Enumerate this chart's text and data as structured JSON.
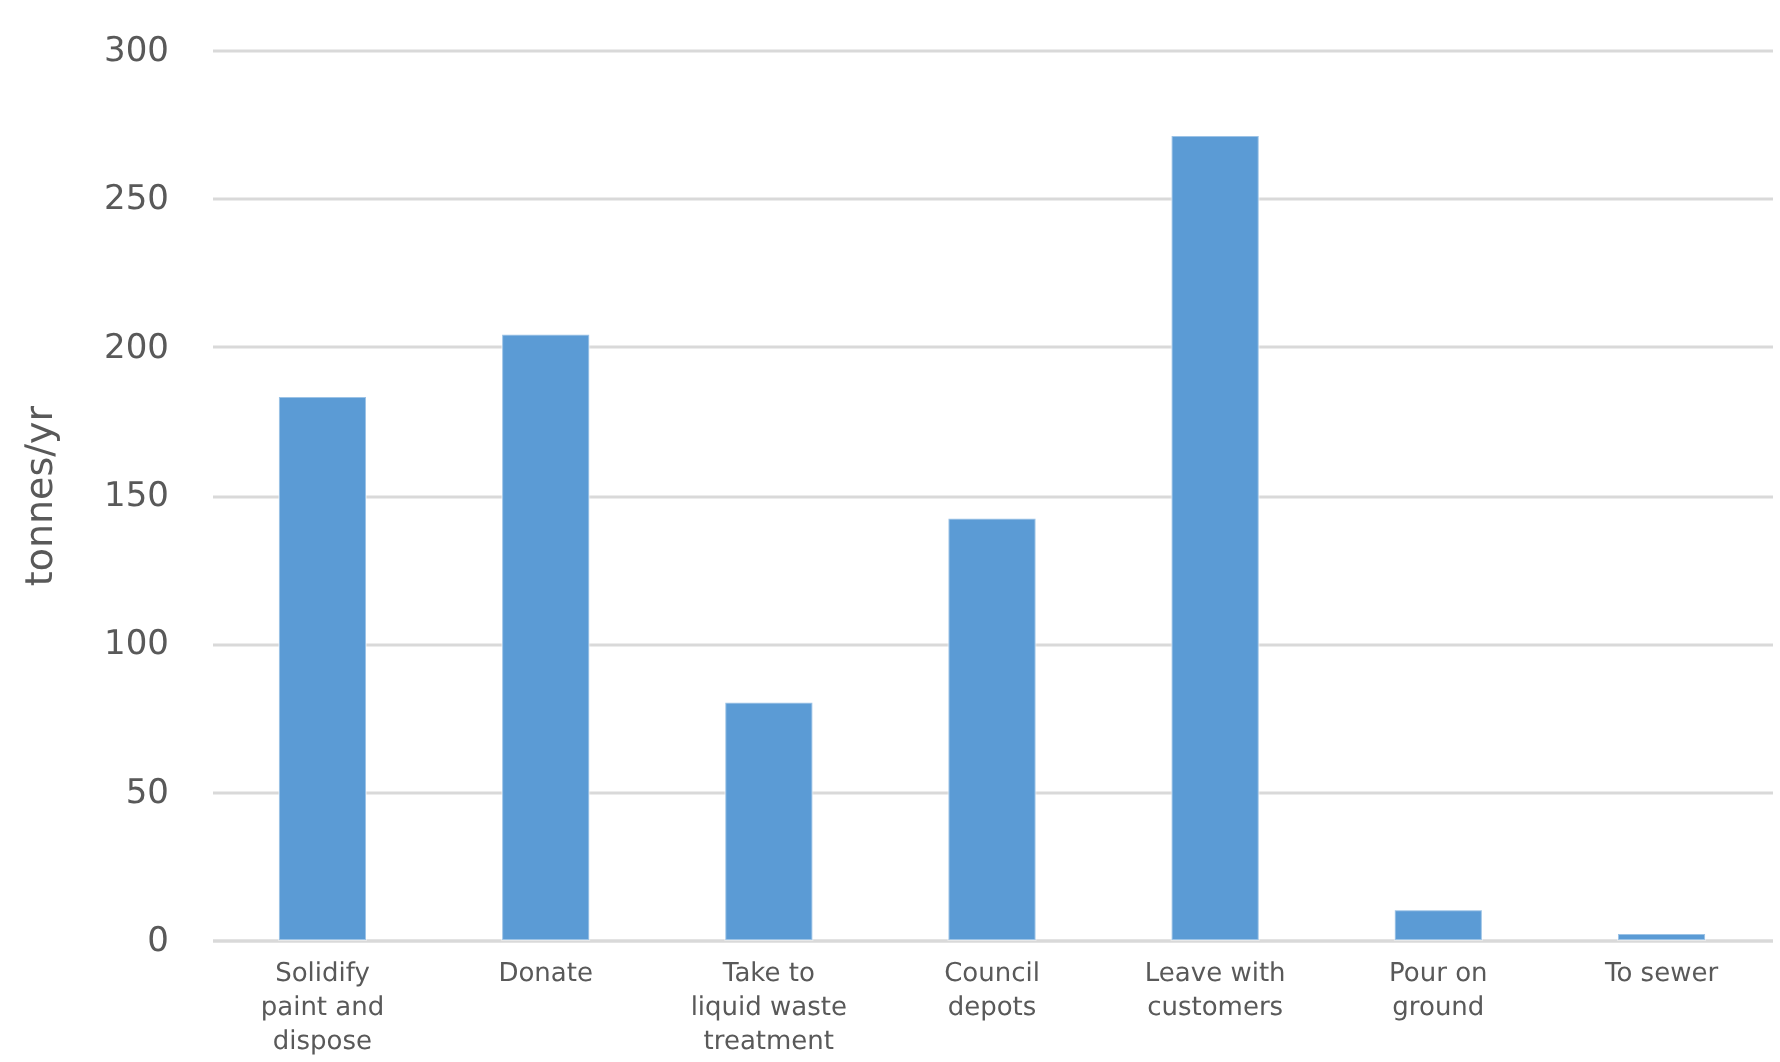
{
  "chart_data": {
    "type": "bar",
    "ylabel": "tonnes/yr",
    "categories": [
      "Solidify paint and dispose",
      "Donate",
      "Take to liquid waste treatment",
      "Council depots",
      "Leave with customers",
      "Pour on ground",
      "To sewer"
    ],
    "values": [
      183,
      204,
      80,
      142,
      271,
      10,
      2
    ],
    "color": "#5b9bd5",
    "ylim": [
      0,
      300
    ],
    "yticks": [
      0,
      50,
      100,
      150,
      200,
      250,
      300
    ],
    "grid": "y"
  }
}
